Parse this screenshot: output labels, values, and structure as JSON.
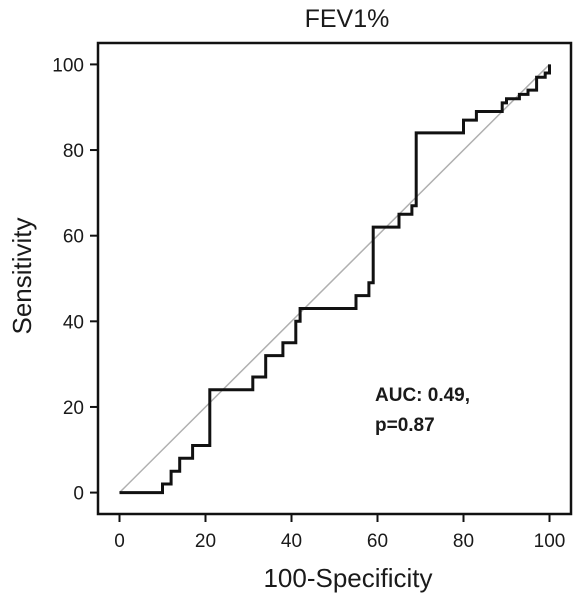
{
  "chart_data": {
    "type": "line",
    "title": "FEV1%",
    "xlabel": "100-Specificity",
    "ylabel": "Sensitivity",
    "xlim": [
      -5,
      105
    ],
    "ylim": [
      -5,
      105
    ],
    "xticks": [
      0,
      20,
      40,
      60,
      80,
      100
    ],
    "yticks": [
      0,
      20,
      40,
      60,
      80,
      100
    ],
    "grid": false,
    "annotation": [
      "AUC: 0.49,",
      "p=0.87"
    ],
    "colors": {
      "roc": "#111111",
      "reference": "#b0b0b0",
      "frame": "#111111"
    },
    "series": [
      {
        "type": "step",
        "x": [
          0,
          10,
          10,
          12,
          12,
          14,
          14,
          17,
          17,
          21,
          21,
          31,
          31,
          34,
          34,
          38,
          38,
          41,
          41,
          42,
          42,
          55,
          55,
          58,
          58,
          59,
          59,
          65,
          65,
          68,
          68,
          69,
          69,
          80,
          80,
          83,
          83,
          89,
          89,
          90,
          90,
          93,
          93,
          95,
          95,
          97,
          97,
          99,
          99,
          100,
          100
        ],
        "y": [
          0,
          0,
          2,
          2,
          5,
          5,
          8,
          8,
          11,
          11,
          24,
          24,
          27,
          27,
          32,
          32,
          35,
          35,
          40,
          40,
          43,
          43,
          46,
          46,
          49,
          49,
          62,
          62,
          65,
          65,
          67,
          67,
          84,
          84,
          87,
          87,
          89,
          89,
          91,
          91,
          92,
          92,
          93,
          93,
          94,
          94,
          97,
          97,
          98,
          98,
          100
        ]
      },
      {
        "type": "reference",
        "x": [
          0,
          100
        ],
        "y": [
          0,
          100
        ]
      }
    ]
  }
}
